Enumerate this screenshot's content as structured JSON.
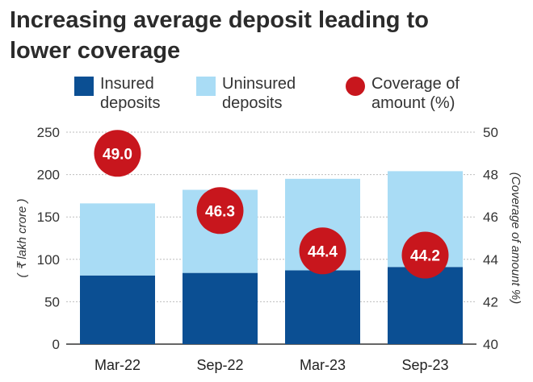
{
  "chart_data": {
    "type": "bar",
    "title": "Increasing average deposit leading to lower coverage",
    "categories": [
      "Mar-22",
      "Sep-22",
      "Mar-23",
      "Sep-23"
    ],
    "series": [
      {
        "name": "Insured deposits",
        "values": [
          81,
          84,
          87,
          91
        ],
        "color": "#0b4f93"
      },
      {
        "name": "Uninsured deposits",
        "values": [
          85,
          98,
          108,
          113
        ],
        "color": "#a9dcf5"
      },
      {
        "name": "Coverage of amount (%)",
        "values": [
          49.0,
          46.3,
          44.4,
          44.2
        ],
        "labels": [
          "49.0",
          "46.3",
          "44.4",
          "44.2"
        ],
        "color": "#c8161d",
        "axis": "right"
      }
    ],
    "stacked": true,
    "ylabel": "( ₹ lakh crore )",
    "ylabel_right": "(Coverage of amount %)",
    "ylim": [
      0,
      250
    ],
    "ylim_right": [
      40,
      50
    ],
    "y_ticks": [
      "0",
      "50",
      "100",
      "150",
      "200",
      "250"
    ],
    "y_ticks_right": [
      "40",
      "42",
      "44",
      "46",
      "48",
      "50"
    ],
    "grid": true,
    "legend_position": "top"
  },
  "legend": [
    {
      "label": "Insured deposits",
      "color": "#0b4f93",
      "shape": "square"
    },
    {
      "label": "Uninsured deposits",
      "color": "#a9dcf5",
      "shape": "square"
    },
    {
      "label": "Coverage of amount (%)",
      "color": "#c8161d",
      "shape": "circle"
    }
  ]
}
